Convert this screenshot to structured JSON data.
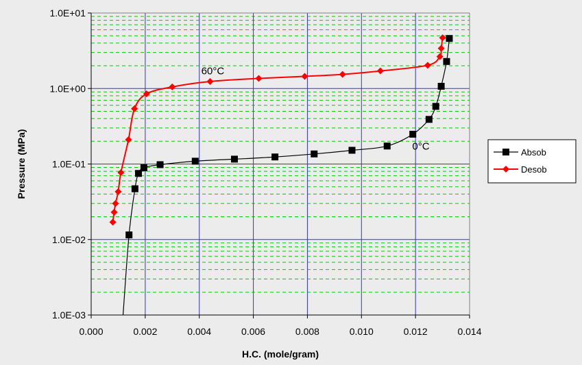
{
  "chart_data": {
    "type": "scatter",
    "xlabel": "H.C. (mole/gram)",
    "ylabel": "Pressure (MPa)",
    "xlim": [
      0.0,
      0.014
    ],
    "ylim": [
      0.001,
      10
    ],
    "yscale": "log",
    "x_ticks": [
      "0.000",
      "0.002",
      "0.004",
      "0.006",
      "0.008",
      "0.010",
      "0.012",
      "0.014"
    ],
    "y_ticks": [
      "1.0E-03",
      "1.0E-02",
      "1.0E-01",
      "1.0E+00",
      "1.0E+01"
    ],
    "grid": {
      "major": true,
      "minor": true
    },
    "legend_position": "right",
    "annotations": [
      {
        "text": "60°C",
        "x": 0.0045,
        "y": 1.55
      },
      {
        "text": "0°C",
        "x": 0.0122,
        "y": 0.155
      }
    ],
    "series": [
      {
        "name": "Absob",
        "color": "#000000",
        "marker": "square",
        "x": [
          0.0014,
          0.00162,
          0.00175,
          0.00195,
          0.00255,
          0.00385,
          0.0053,
          0.0068,
          0.00825,
          0.00965,
          0.01095,
          0.0119,
          0.0125,
          0.01275,
          0.01295,
          0.01315,
          0.01325
        ],
        "y": [
          0.0115,
          0.047,
          0.075,
          0.089,
          0.098,
          0.109,
          0.116,
          0.124,
          0.136,
          0.152,
          0.173,
          0.248,
          0.39,
          0.58,
          1.07,
          2.28,
          4.6
        ],
        "curve_start": {
          "x": 0.00118,
          "y": 0.001
        }
      },
      {
        "name": "Desob",
        "color": "#ff0000",
        "marker": "diamond",
        "x": [
          0.0008,
          0.00085,
          0.0009,
          0.001,
          0.0011,
          0.00138,
          0.0016,
          0.00205,
          0.003,
          0.0044,
          0.0062,
          0.0079,
          0.0093,
          0.0107,
          0.01245,
          0.0129,
          0.01295,
          0.013
        ],
        "y": [
          0.017,
          0.023,
          0.03,
          0.043,
          0.077,
          0.21,
          0.54,
          0.85,
          1.05,
          1.24,
          1.36,
          1.45,
          1.54,
          1.71,
          2.03,
          2.65,
          3.4,
          4.7
        ]
      }
    ]
  }
}
